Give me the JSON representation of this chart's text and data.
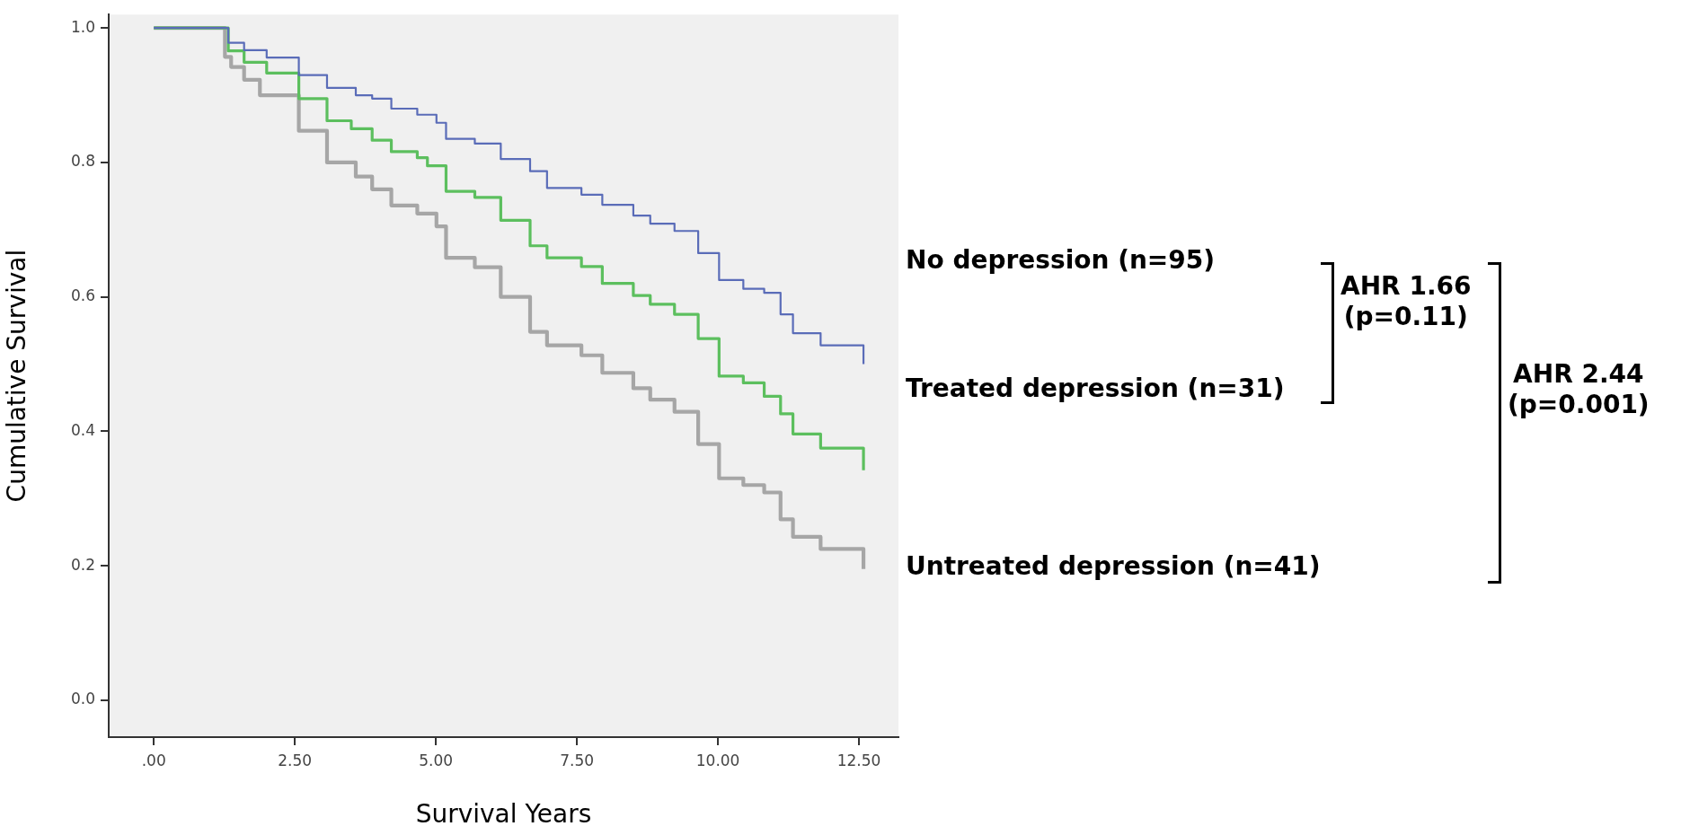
{
  "chart_data": {
    "type": "step",
    "xlabel": "Survival Years",
    "ylabel": "Cumulative Survival",
    "xlim": [
      -0.8,
      13.2
    ],
    "ylim": [
      -0.055,
      1.02
    ],
    "xticks": [
      {
        "value": 0,
        "label": ".00"
      },
      {
        "value": 2.5,
        "label": "2.50"
      },
      {
        "value": 5,
        "label": "5.00"
      },
      {
        "value": 7.5,
        "label": "7.50"
      },
      {
        "value": 10,
        "label": "10.00"
      },
      {
        "value": 12.5,
        "label": "12.50"
      }
    ],
    "yticks": [
      {
        "value": 0,
        "label": "0.0"
      },
      {
        "value": 0.2,
        "label": "0.2"
      },
      {
        "value": 0.4,
        "label": "0.4"
      },
      {
        "value": 0.6,
        "label": "0.6"
      },
      {
        "value": 0.8,
        "label": "0.8"
      },
      {
        "value": 1,
        "label": "1.0"
      }
    ],
    "marker": "none",
    "series": [
      {
        "name": "No depression (n=95)",
        "color": "#5a6cb8",
        "x": [
          0,
          1.0,
          1.32,
          1.6,
          2.0,
          2.57,
          3.07,
          3.58,
          3.87,
          4.21,
          4.67,
          5.01,
          5.18,
          5.69,
          6.15,
          6.67,
          6.97,
          7.58,
          7.95,
          8.5,
          8.8,
          9.23,
          9.65,
          10.02,
          10.45,
          10.82,
          11.11,
          11.33,
          11.82,
          12.58,
          12.58
        ],
        "values": [
          1,
          1,
          0.978,
          0.967,
          0.956,
          0.93,
          0.911,
          0.9,
          0.895,
          0.88,
          0.871,
          0.859,
          0.835,
          0.828,
          0.805,
          0.787,
          0.762,
          0.752,
          0.737,
          0.721,
          0.709,
          0.698,
          0.665,
          0.625,
          0.612,
          0.606,
          0.574,
          0.546,
          0.528,
          0.528,
          0.5
        ]
      },
      {
        "name": "Treated depression (n=31)",
        "color": "#5cbf5e",
        "x": [
          0,
          1.0,
          1.32,
          1.6,
          2.0,
          2.57,
          3.07,
          3.5,
          3.87,
          4.21,
          4.67,
          4.85,
          5.18,
          5.69,
          6.15,
          6.67,
          6.97,
          7.58,
          7.95,
          8.5,
          8.8,
          9.23,
          9.65,
          10.02,
          10.45,
          10.82,
          11.11,
          11.33,
          11.82,
          12.58,
          12.58
        ],
        "values": [
          1,
          1,
          0.966,
          0.949,
          0.933,
          0.895,
          0.862,
          0.85,
          0.833,
          0.816,
          0.807,
          0.795,
          0.757,
          0.748,
          0.714,
          0.676,
          0.658,
          0.645,
          0.62,
          0.602,
          0.589,
          0.574,
          0.538,
          0.482,
          0.472,
          0.452,
          0.426,
          0.396,
          0.375,
          0.375,
          0.342
        ]
      },
      {
        "name": "Untreated depression (n=41)",
        "color": "#a6a6a6",
        "x": [
          0,
          1.0,
          1.26,
          1.37,
          1.6,
          1.88,
          2.57,
          3.07,
          3.58,
          3.87,
          4.21,
          4.67,
          5.01,
          5.18,
          5.69,
          6.15,
          6.67,
          6.97,
          7.58,
          7.95,
          8.5,
          8.8,
          9.23,
          9.65,
          10.02,
          10.45,
          10.82,
          11.11,
          11.33,
          11.82,
          12.58,
          12.58
        ],
        "values": [
          1,
          1,
          0.957,
          0.942,
          0.923,
          0.9,
          0.847,
          0.8,
          0.779,
          0.76,
          0.736,
          0.724,
          0.705,
          0.658,
          0.644,
          0.6,
          0.548,
          0.528,
          0.513,
          0.487,
          0.464,
          0.447,
          0.429,
          0.381,
          0.33,
          0.32,
          0.309,
          0.269,
          0.243,
          0.225,
          0.225,
          0.195
        ]
      }
    ],
    "annotations": [
      "AHR 1.66",
      "(p=0.11)",
      "AHR 2.44",
      "(p=0.001)"
    ]
  }
}
